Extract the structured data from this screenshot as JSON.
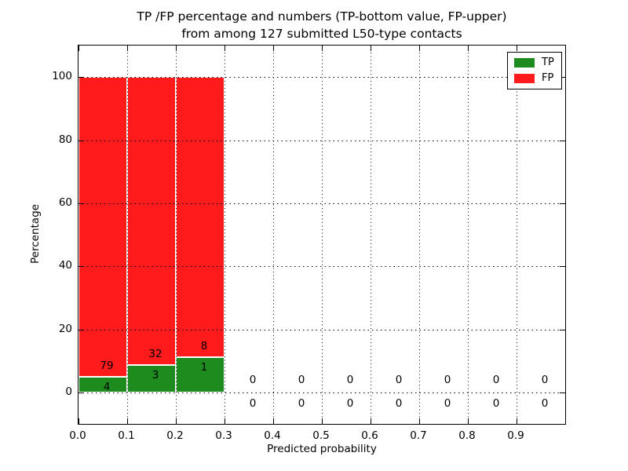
{
  "chart_data": {
    "type": "bar",
    "stacked": true,
    "normalized_to_percent": true,
    "title_line1": "TP /FP percentage and numbers (TP-bottom value, FP-upper)",
    "title_line2": "from among 127 submitted L50-type contacts",
    "xlabel": "Predicted probability",
    "ylabel": "Percentage",
    "xlim": [
      0.0,
      1.0
    ],
    "ylim": [
      -10,
      110
    ],
    "xticks": [
      0.0,
      0.1,
      0.2,
      0.3,
      0.4,
      0.5,
      0.6,
      0.7,
      0.8,
      0.9
    ],
    "xtick_labels": [
      "0.0",
      "0.1",
      "0.2",
      "0.3",
      "0.4",
      "0.5",
      "0.6",
      "0.7",
      "0.8",
      "0.9"
    ],
    "yticks": [
      0,
      20,
      40,
      60,
      80,
      100
    ],
    "ytick_labels": [
      "0",
      "20",
      "40",
      "60",
      "80",
      "100"
    ],
    "grid": "dotted",
    "bin_edges": [
      0.0,
      0.1,
      0.2,
      0.3,
      0.4,
      0.5,
      0.6,
      0.7,
      0.8,
      0.9,
      1.0
    ],
    "series": [
      {
        "name": "TP",
        "color": "#1e8b1e",
        "counts": [
          4,
          3,
          1,
          0,
          0,
          0,
          0,
          0,
          0,
          0
        ]
      },
      {
        "name": "FP",
        "color": "#ff1b1b",
        "counts": [
          79,
          32,
          8,
          0,
          0,
          0,
          0,
          0,
          0,
          0
        ]
      }
    ],
    "total_contacts": 127,
    "bar_edge_color": "#ffffff",
    "legend": {
      "position": "upper right",
      "entries": [
        {
          "label": "TP",
          "color": "#1e8b1e"
        },
        {
          "label": "FP",
          "color": "#ff1b1b"
        }
      ]
    }
  }
}
